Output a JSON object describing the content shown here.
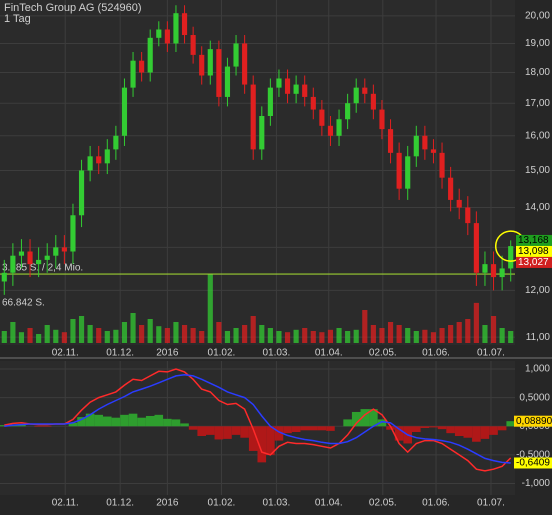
{
  "chart_data": [
    {
      "type": "candlestick",
      "title": "FinTech Group AG (524960)",
      "subtitle": "1 Tag",
      "xlim": [
        -0.5,
        59.5
      ],
      "xticks": [
        {
          "value": 7.1,
          "label": "02.11."
        },
        {
          "value": 13.5,
          "label": "01.12."
        },
        {
          "value": 19.0,
          "label": "2016"
        },
        {
          "value": 25.3,
          "label": "01.02."
        },
        {
          "value": 31.7,
          "label": "01.03."
        },
        {
          "value": 37.8,
          "label": "01.04."
        },
        {
          "value": 44.1,
          "label": "02.05."
        },
        {
          "value": 50.3,
          "label": "01.06."
        },
        {
          "value": 56.7,
          "label": "01.07."
        }
      ],
      "ylim": [
        10.86,
        20.6
      ],
      "log_scale": true,
      "grid": true,
      "yticks": [
        {
          "value": 11,
          "label": "11,00"
        },
        {
          "value": 12,
          "label": "12,00"
        },
        {
          "value": 13,
          "label": "13,00"
        },
        {
          "value": 14,
          "label": "14,00"
        },
        {
          "value": 15,
          "label": "15,00"
        },
        {
          "value": 16,
          "label": "16,00"
        },
        {
          "value": 17,
          "label": "17,00"
        },
        {
          "value": 18,
          "label": "18,00"
        },
        {
          "value": 19,
          "label": "19,00"
        },
        {
          "value": 20,
          "label": "20,00"
        }
      ],
      "up_color": "#33cc33",
      "down_color": "#e02020",
      "open": [
        12.2,
        12.4,
        12.8,
        12.9,
        12.6,
        12.7,
        12.8,
        13.0,
        12.9,
        13.8,
        15.0,
        15.4,
        15.2,
        15.6,
        16.0,
        17.5,
        18.4,
        18.0,
        19.2,
        19.5,
        19.0,
        20.1,
        19.3,
        18.6,
        17.9,
        18.8,
        17.2,
        18.2,
        19.0,
        17.6,
        15.6,
        16.6,
        17.5,
        17.8,
        17.3,
        17.6,
        17.2,
        16.8,
        16.3,
        16.0,
        16.5,
        17.0,
        17.5,
        17.3,
        16.8,
        16.2,
        15.5,
        14.5,
        15.4,
        16.0,
        15.6,
        15.5,
        14.8,
        14.2,
        14.0,
        13.6,
        12.4,
        12.6,
        12.3,
        12.5
      ],
      "high": [
        12.7,
        13.1,
        13.2,
        13.2,
        13.0,
        13.1,
        13.3,
        13.3,
        14.1,
        15.3,
        15.7,
        15.7,
        15.9,
        16.3,
        17.8,
        18.7,
        18.7,
        19.5,
        19.8,
        19.8,
        20.4,
        20.4,
        19.6,
        18.9,
        19.1,
        19.1,
        18.5,
        19.3,
        19.3,
        17.9,
        16.9,
        17.8,
        18.1,
        18.1,
        17.9,
        17.9,
        17.5,
        17.1,
        16.6,
        16.8,
        17.3,
        17.8,
        17.8,
        17.6,
        17.1,
        16.5,
        15.8,
        15.7,
        16.3,
        16.3,
        15.9,
        15.8,
        15.1,
        14.5,
        14.3,
        13.9,
        12.9,
        12.9,
        12.8,
        13.17
      ],
      "low": [
        11.9,
        12.1,
        12.5,
        12.3,
        12.3,
        12.4,
        12.5,
        12.6,
        12.6,
        13.5,
        14.7,
        14.9,
        14.9,
        15.3,
        15.7,
        17.2,
        17.7,
        17.7,
        18.9,
        18.7,
        18.7,
        19.0,
        18.3,
        17.6,
        17.6,
        16.9,
        16.9,
        17.9,
        17.3,
        15.3,
        15.3,
        16.3,
        17.2,
        17.0,
        17.0,
        16.9,
        16.5,
        16.0,
        15.7,
        15.7,
        16.2,
        16.7,
        17.0,
        16.5,
        15.9,
        15.2,
        14.2,
        14.2,
        15.1,
        15.3,
        15.2,
        14.5,
        13.9,
        13.7,
        13.3,
        12.1,
        12.1,
        12.0,
        12.0,
        12.2
      ],
      "close": [
        12.4,
        12.8,
        12.9,
        12.6,
        12.7,
        12.8,
        13.0,
        12.9,
        13.8,
        15.0,
        15.4,
        15.2,
        15.6,
        16.0,
        17.5,
        18.4,
        18.0,
        19.2,
        19.5,
        19.0,
        20.1,
        19.3,
        18.6,
        17.9,
        18.8,
        17.2,
        18.2,
        19.0,
        17.6,
        15.6,
        16.6,
        17.5,
        17.8,
        17.3,
        17.6,
        17.2,
        16.8,
        16.3,
        16.0,
        16.5,
        17.0,
        17.5,
        17.3,
        16.8,
        16.2,
        15.5,
        14.5,
        15.4,
        16.0,
        15.6,
        15.5,
        14.8,
        14.2,
        14.0,
        13.6,
        12.4,
        12.6,
        12.3,
        12.5,
        13.03
      ],
      "volume": {
        "values": [
          20000,
          35000,
          18000,
          25000,
          15000,
          30000,
          22000,
          18000,
          40000,
          45000,
          30000,
          25000,
          20000,
          22000,
          35000,
          50000,
          30000,
          40000,
          28000,
          25000,
          35000,
          30000,
          25000,
          20000,
          115000,
          35000,
          20000,
          25000,
          30000,
          45000,
          30000,
          25000,
          20000,
          18000,
          22000,
          25000,
          20000,
          18000,
          22000,
          25000,
          20000,
          22000,
          55000,
          30000,
          25000,
          35000,
          30000,
          25000,
          20000,
          22000,
          18000,
          25000,
          30000,
          35000,
          40000,
          66842,
          30000,
          45000,
          25000,
          20000
        ],
        "ylim": [
          0,
          150000
        ],
        "ticks": [
          {
            "value": 66842,
            "label": "66.842 S."
          }
        ]
      },
      "hline": {
        "value": 12.37,
        "label": "3.685 S. / 2,4 Mio.",
        "color": "#9acd32"
      },
      "price_markers": [
        {
          "value": 13.168,
          "label": "13,168",
          "color": "#1f9e1f"
        },
        {
          "value": 13.098,
          "label": "13,098",
          "color": "#ffff00"
        },
        {
          "value": 13.027,
          "label": "13,027",
          "color": "#d02020"
        }
      ]
    },
    {
      "type": "macd",
      "xlim": [
        -0.5,
        59.5
      ],
      "xticks": [
        {
          "value": 7.1,
          "label": "02.11."
        },
        {
          "value": 13.5,
          "label": "01.12."
        },
        {
          "value": 19.0,
          "label": "2016"
        },
        {
          "value": 25.3,
          "label": "01.02."
        },
        {
          "value": 31.7,
          "label": "01.03."
        },
        {
          "value": 37.8,
          "label": "01.04."
        },
        {
          "value": 44.1,
          "label": "02.05."
        },
        {
          "value": 50.3,
          "label": "01.06."
        },
        {
          "value": 56.7,
          "label": "01.07."
        }
      ],
      "ylim": [
        -1.2,
        1.14
      ],
      "grid": true,
      "yticks": [
        {
          "value": -1,
          "label": "-1,000"
        },
        {
          "value": -0.5,
          "label": "-0,5000"
        },
        {
          "value": 0,
          "label": "0,0000"
        },
        {
          "value": 0.5,
          "label": "0,5000"
        },
        {
          "value": 1,
          "label": "1,000"
        }
      ],
      "histogram": {
        "up_color": "#2e9e2e",
        "down_color": "#b01818",
        "values": [
          0.02,
          0.03,
          0.03,
          0,
          -0.01,
          -0.01,
          0,
          0,
          0.06,
          0.16,
          0.22,
          0.2,
          0.17,
          0.15,
          0.2,
          0.22,
          0.15,
          0.18,
          0.2,
          0.13,
          0.12,
          0.05,
          -0.06,
          -0.17,
          -0.15,
          -0.23,
          -0.22,
          -0.15,
          -0.2,
          -0.43,
          -0.63,
          -0.5,
          -0.25,
          -0.12,
          -0.1,
          -0.07,
          -0.07,
          -0.07,
          -0.08,
          0,
          0.12,
          0.25,
          0.3,
          0.3,
          0.12,
          -0.06,
          -0.25,
          -0.3,
          -0.1,
          -0.03,
          -0.02,
          -0.05,
          -0.12,
          -0.17,
          -0.2,
          -0.27,
          -0.22,
          -0.15,
          -0.07,
          0.0889
        ]
      },
      "series": [
        {
          "color": "#ff2a2a",
          "values": [
            0.02,
            0.05,
            0.06,
            0.04,
            0.03,
            0.03,
            0.04,
            0.04,
            0.12,
            0.28,
            0.42,
            0.5,
            0.55,
            0.6,
            0.72,
            0.82,
            0.8,
            0.88,
            0.96,
            0.95,
            1.0,
            0.95,
            0.82,
            0.65,
            0.6,
            0.45,
            0.38,
            0.4,
            0.3,
            -0.05,
            -0.45,
            -0.5,
            -0.35,
            -0.28,
            -0.3,
            -0.3,
            -0.32,
            -0.35,
            -0.38,
            -0.3,
            -0.15,
            0.05,
            0.2,
            0.3,
            0.2,
            0.0,
            -0.3,
            -0.45,
            -0.3,
            -0.25,
            -0.25,
            -0.3,
            -0.4,
            -0.5,
            -0.6,
            -0.75,
            -0.78,
            -0.75,
            -0.7,
            -0.553
          ]
        },
        {
          "color": "#2a3cff",
          "values": [
            0.0,
            0.02,
            0.03,
            0.04,
            0.04,
            0.04,
            0.04,
            0.04,
            0.06,
            0.12,
            0.2,
            0.3,
            0.38,
            0.45,
            0.52,
            0.6,
            0.65,
            0.7,
            0.76,
            0.82,
            0.88,
            0.9,
            0.88,
            0.82,
            0.75,
            0.68,
            0.6,
            0.55,
            0.5,
            0.38,
            0.18,
            0.0,
            -0.1,
            -0.16,
            -0.2,
            -0.23,
            -0.25,
            -0.28,
            -0.3,
            -0.3,
            -0.27,
            -0.2,
            -0.1,
            0.0,
            0.08,
            0.06,
            -0.05,
            -0.15,
            -0.2,
            -0.22,
            -0.23,
            -0.25,
            -0.28,
            -0.33,
            -0.4,
            -0.48,
            -0.56,
            -0.6,
            -0.63,
            -0.6409
          ]
        }
      ],
      "markers": [
        {
          "value": 0.0889,
          "label": "0,08890",
          "color": "#ffd700"
        },
        {
          "value": -0.6409,
          "label": "-0,6409",
          "color": "#ffff00"
        }
      ]
    }
  ]
}
